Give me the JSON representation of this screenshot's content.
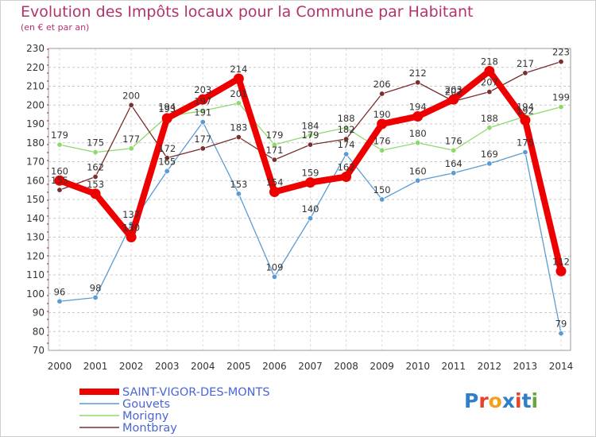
{
  "page": {
    "title": "Evolution des Impôts locaux pour la Commune par Habitant",
    "subtitle": "(en € et par an)",
    "logo_letters": [
      "P",
      "r",
      "o",
      "x",
      "i",
      "t",
      "i"
    ],
    "logo_colors": [
      "#2f7fc8",
      "#e8412c",
      "#f2a11f",
      "#2f7fc8",
      "#e8412c",
      "#2f7fc8",
      "#63a83a"
    ]
  },
  "chart_data": {
    "type": "line",
    "title": "Evolution des Impôts locaux pour la Commune par Habitant",
    "subtitle": "(en € et par an)",
    "xlabel": "",
    "ylabel": "",
    "categories": [
      "2000",
      "2001",
      "2002",
      "2003",
      "2004",
      "2005",
      "2006",
      "2007",
      "2008",
      "2009",
      "2010",
      "2011",
      "2012",
      "2013",
      "2014"
    ],
    "ylim": [
      70,
      230
    ],
    "yticks": [
      70,
      80,
      90,
      100,
      110,
      120,
      130,
      140,
      150,
      160,
      170,
      180,
      190,
      200,
      210,
      220,
      230
    ],
    "grid": true,
    "legend_position": "bottom-left",
    "series": [
      {
        "name": "SAINT-VIGOR-DES-MONTS",
        "color": "#ee0000",
        "values": [
          160,
          153,
          130,
          193,
          203,
          214,
          154,
          159,
          162,
          190,
          194,
          203,
          218,
          192,
          112
        ]
      },
      {
        "name": "Gouvets",
        "color": "#5a9bd4",
        "values": [
          96,
          98,
          137,
          165,
          191,
          153,
          109,
          140,
          174,
          150,
          160,
          164,
          169,
          175,
          79
        ]
      },
      {
        "name": "Morigny",
        "color": "#8ed86c",
        "values": [
          179,
          175,
          177,
          194,
          197,
          201,
          179,
          184,
          188,
          176,
          180,
          176,
          188,
          194,
          199
        ]
      },
      {
        "name": "Montbray",
        "color": "#7a2e2e",
        "values": [
          155,
          162,
          200,
          172,
          177,
          183,
          171,
          179,
          182,
          206,
          212,
          202,
          207,
          217,
          223
        ]
      }
    ]
  }
}
